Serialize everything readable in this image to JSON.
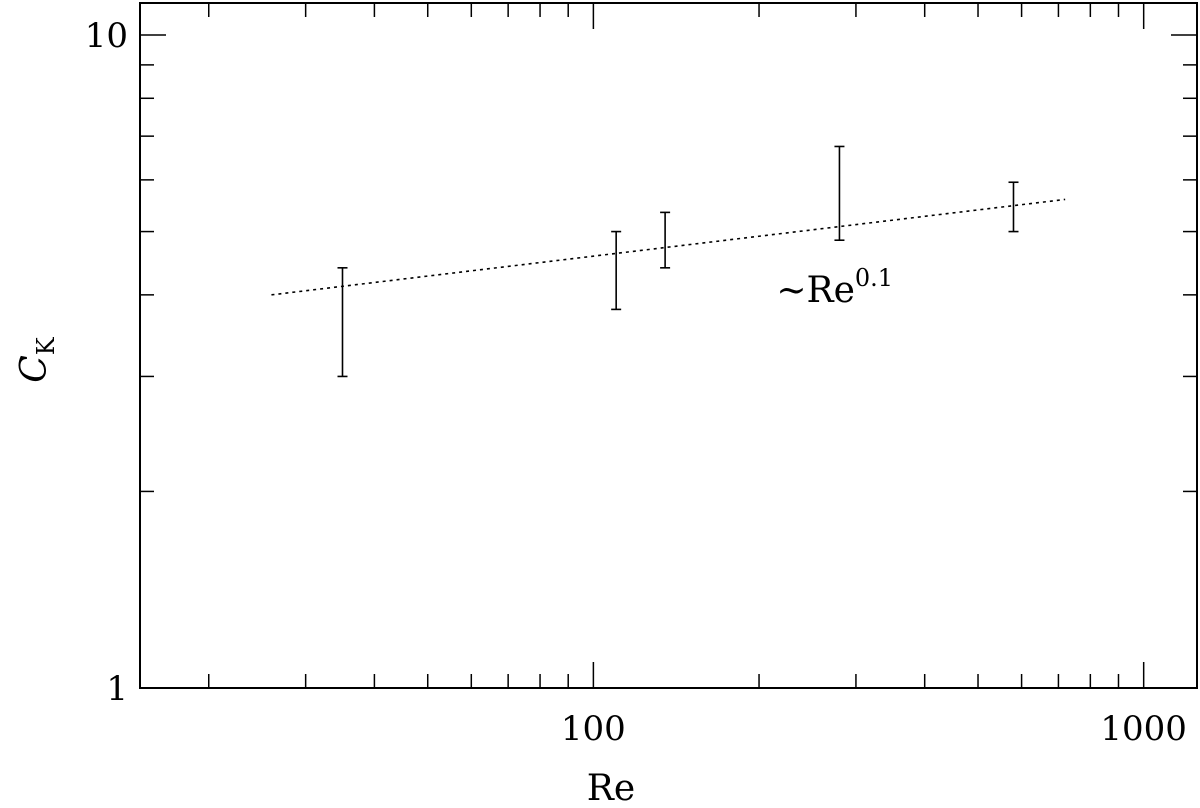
{
  "chart_data": {
    "type": "scatter",
    "title": "",
    "xlabel": "Re",
    "ylabel_main": "C",
    "ylabel_sub": "K",
    "x_scale": "log",
    "y_scale": "log",
    "xlim": [
      15,
      1250
    ],
    "ylim": [
      1,
      10
    ],
    "x_major_ticks": [
      {
        "value": 100,
        "label": "100"
      },
      {
        "value": 1000,
        "label": "1000"
      }
    ],
    "y_major_ticks": [
      {
        "value": 1,
        "label": "1"
      },
      {
        "value": 10,
        "label": "10"
      }
    ],
    "grid": false,
    "series": [
      {
        "kind": "errorbar",
        "points": [
          {
            "x": 35,
            "low": 3.0,
            "high": 4.4
          },
          {
            "x": 110,
            "low": 3.8,
            "high": 5.0
          },
          {
            "x": 135,
            "low": 4.4,
            "high": 5.35
          },
          {
            "x": 280,
            "low": 4.85,
            "high": 6.75
          },
          {
            "x": 580,
            "low": 5.0,
            "high": 5.95
          }
        ]
      },
      {
        "kind": "fit-line",
        "style": "dotted",
        "x": [
          26,
          720
        ],
        "y": [
          4.0,
          5.6
        ]
      }
    ],
    "annotations": [
      {
        "text": "~Re",
        "superscript": "0.1",
        "x": 215,
        "y": 3.9
      }
    ]
  }
}
